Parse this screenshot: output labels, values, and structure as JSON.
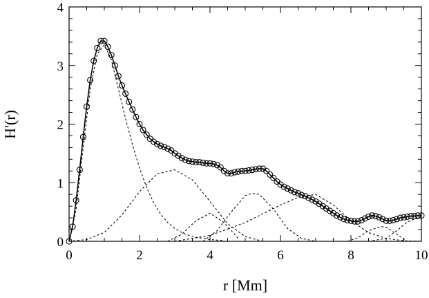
{
  "chart_data": {
    "type": "line",
    "xlabel": "r [Mm]",
    "ylabel": "H'(r)",
    "xlim": [
      0,
      10
    ],
    "ylim": [
      0,
      4
    ],
    "x_ticks": [
      "0",
      "2",
      "4",
      "6",
      "8",
      "10"
    ],
    "y_ticks": [
      "0",
      "1",
      "2",
      "3",
      "4"
    ],
    "grid": false,
    "legend": "none",
    "series": [
      {
        "style": "circles",
        "x": [
          0.0,
          0.1,
          0.2,
          0.3,
          0.4,
          0.5,
          0.6,
          0.7,
          0.8,
          0.9,
          1.0,
          1.1,
          1.2,
          1.3,
          1.4,
          1.5,
          1.6,
          1.7,
          1.8,
          1.9,
          2.0,
          2.1,
          2.2,
          2.3,
          2.4,
          2.5,
          2.6,
          2.7,
          2.8,
          2.9,
          3.0,
          3.1,
          3.2,
          3.3,
          3.4,
          3.5,
          3.6,
          3.7,
          3.8,
          3.9,
          4.0,
          4.1,
          4.2,
          4.3,
          4.4,
          4.5,
          4.6,
          4.7,
          4.8,
          4.9,
          5.0,
          5.1,
          5.2,
          5.3,
          5.4,
          5.5,
          5.6,
          5.7,
          5.8,
          5.9,
          6.0,
          6.1,
          6.2,
          6.3,
          6.4,
          6.5,
          6.6,
          6.7,
          6.8,
          6.9,
          7.0,
          7.1,
          7.2,
          7.3,
          7.4,
          7.5,
          7.6,
          7.7,
          7.8,
          7.9,
          8.0,
          8.1,
          8.2,
          8.3,
          8.4,
          8.5,
          8.6,
          8.7,
          8.8,
          8.9,
          9.0,
          9.1,
          9.2,
          9.3,
          9.4,
          9.5,
          9.6,
          9.7,
          9.8,
          9.9,
          10.0
        ],
        "y": [
          0.0,
          0.25,
          0.7,
          1.22,
          1.78,
          2.3,
          2.75,
          3.08,
          3.3,
          3.42,
          3.42,
          3.32,
          3.18,
          3.0,
          2.82,
          2.66,
          2.52,
          2.38,
          2.25,
          2.12,
          2.0,
          1.9,
          1.82,
          1.75,
          1.7,
          1.66,
          1.63,
          1.61,
          1.58,
          1.55,
          1.5,
          1.46,
          1.42,
          1.39,
          1.37,
          1.36,
          1.35,
          1.35,
          1.34,
          1.33,
          1.33,
          1.32,
          1.3,
          1.26,
          1.2,
          1.16,
          1.16,
          1.18,
          1.19,
          1.2,
          1.2,
          1.21,
          1.22,
          1.23,
          1.24,
          1.24,
          1.2,
          1.14,
          1.08,
          1.02,
          0.97,
          0.93,
          0.9,
          0.87,
          0.84,
          0.82,
          0.79,
          0.77,
          0.74,
          0.71,
          0.68,
          0.64,
          0.6,
          0.56,
          0.52,
          0.48,
          0.44,
          0.41,
          0.38,
          0.36,
          0.35,
          0.34,
          0.34,
          0.36,
          0.39,
          0.42,
          0.44,
          0.43,
          0.41,
          0.38,
          0.35,
          0.35,
          0.36,
          0.38,
          0.4,
          0.41,
          0.42,
          0.43,
          0.43,
          0.44,
          0.44
        ]
      },
      {
        "style": "solid",
        "x": [
          0.0,
          0.1,
          0.2,
          0.3,
          0.4,
          0.5,
          0.6,
          0.7,
          0.8,
          0.9,
          1.0,
          1.1,
          1.2,
          1.3,
          1.4,
          1.5,
          1.6,
          1.7,
          1.8,
          1.9,
          2.0,
          2.1,
          2.2,
          2.3,
          2.4,
          2.5,
          2.6,
          2.7,
          2.8,
          2.9,
          3.0,
          3.1,
          3.2,
          3.3,
          3.4,
          3.5,
          3.6,
          3.7,
          3.8,
          3.9,
          4.0,
          4.1,
          4.2,
          4.3,
          4.4,
          4.5,
          4.6,
          4.7,
          4.8,
          4.9,
          5.0,
          5.1,
          5.2,
          5.3,
          5.4,
          5.5,
          5.6,
          5.7,
          5.8,
          5.9,
          6.0,
          6.1,
          6.2,
          6.3,
          6.4,
          6.5,
          6.6,
          6.7,
          6.8,
          6.9,
          7.0,
          7.1,
          7.2,
          7.3,
          7.4,
          7.5,
          7.6,
          7.7,
          7.8,
          7.9,
          8.0,
          8.1,
          8.2,
          8.3,
          8.4,
          8.5,
          8.6,
          8.7,
          8.8,
          8.9,
          9.0,
          9.1,
          9.2,
          9.3,
          9.4,
          9.5,
          9.6,
          9.7,
          9.8,
          9.9,
          10.0
        ],
        "y": [
          0.0,
          0.25,
          0.7,
          1.22,
          1.78,
          2.3,
          2.75,
          3.08,
          3.3,
          3.42,
          3.42,
          3.32,
          3.18,
          3.0,
          2.82,
          2.66,
          2.52,
          2.38,
          2.25,
          2.12,
          2.0,
          1.9,
          1.82,
          1.75,
          1.7,
          1.66,
          1.63,
          1.61,
          1.58,
          1.55,
          1.5,
          1.46,
          1.42,
          1.39,
          1.37,
          1.36,
          1.35,
          1.35,
          1.34,
          1.33,
          1.33,
          1.32,
          1.3,
          1.26,
          1.2,
          1.16,
          1.16,
          1.18,
          1.19,
          1.2,
          1.2,
          1.21,
          1.22,
          1.23,
          1.24,
          1.24,
          1.2,
          1.14,
          1.08,
          1.02,
          0.97,
          0.93,
          0.9,
          0.87,
          0.84,
          0.82,
          0.79,
          0.77,
          0.74,
          0.71,
          0.68,
          0.64,
          0.6,
          0.56,
          0.52,
          0.48,
          0.44,
          0.41,
          0.38,
          0.36,
          0.35,
          0.34,
          0.34,
          0.36,
          0.39,
          0.42,
          0.44,
          0.43,
          0.41,
          0.38,
          0.35,
          0.35,
          0.36,
          0.38,
          0.4,
          0.41,
          0.42,
          0.43,
          0.43,
          0.44,
          0.44
        ]
      },
      {
        "style": "dashed",
        "x": [
          0.0,
          0.2,
          0.4,
          0.6,
          0.8,
          1.0,
          1.2,
          1.4,
          1.6,
          1.8,
          2.0,
          2.2,
          2.4,
          2.6,
          2.8,
          3.0,
          3.2,
          3.4,
          3.6,
          3.8,
          4.0,
          4.2,
          4.4
        ],
        "y": [
          0.0,
          0.55,
          1.6,
          2.6,
          3.2,
          3.35,
          3.1,
          2.6,
          2.1,
          1.65,
          1.25,
          0.92,
          0.66,
          0.46,
          0.32,
          0.22,
          0.15,
          0.1,
          0.07,
          0.05,
          0.03,
          0.02,
          0.01
        ]
      },
      {
        "style": "dashed",
        "x": [
          0.0,
          0.5,
          1.0,
          1.5,
          2.0,
          2.5,
          3.0,
          3.5,
          4.0,
          4.5,
          5.0,
          5.5
        ],
        "y": [
          0.0,
          0.03,
          0.15,
          0.45,
          0.85,
          1.15,
          1.22,
          1.05,
          0.68,
          0.3,
          0.08,
          0.0
        ]
      },
      {
        "style": "dashed",
        "x": [
          2.8,
          3.2,
          3.6,
          4.0,
          4.4,
          4.8
        ],
        "y": [
          0.0,
          0.12,
          0.35,
          0.48,
          0.32,
          0.05
        ]
      },
      {
        "style": "dashed",
        "x": [
          3.8,
          4.2,
          4.6,
          5.0,
          5.2,
          5.4,
          5.8,
          6.2,
          6.6,
          7.0
        ],
        "y": [
          0.0,
          0.18,
          0.5,
          0.78,
          0.82,
          0.8,
          0.55,
          0.22,
          0.05,
          0.0
        ]
      },
      {
        "style": "dashed",
        "x": [
          3.0,
          4.0,
          5.0,
          6.0,
          6.5,
          7.0,
          7.5,
          8.0,
          8.5,
          9.0,
          9.5,
          10.0
        ],
        "y": [
          0.0,
          0.1,
          0.32,
          0.62,
          0.75,
          0.8,
          0.62,
          0.35,
          0.15,
          0.05,
          0.01,
          0.0
        ]
      },
      {
        "style": "dashed",
        "x": [
          7.9,
          8.2,
          8.5,
          8.8,
          8.9,
          9.0,
          9.3,
          9.6
        ],
        "y": [
          0.0,
          0.06,
          0.18,
          0.24,
          0.25,
          0.24,
          0.12,
          0.0
        ]
      },
      {
        "style": "dashed",
        "x": [
          8.5,
          9.0,
          9.3,
          9.6,
          9.8,
          10.0
        ],
        "y": [
          0.0,
          0.05,
          0.18,
          0.33,
          0.38,
          0.4
        ]
      }
    ]
  }
}
